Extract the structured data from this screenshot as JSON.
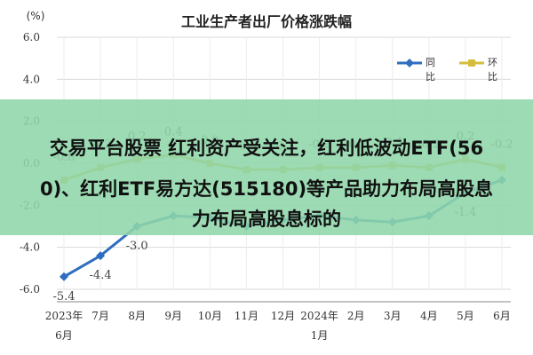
{
  "chart_data": {
    "type": "line",
    "title": "工业生产者出厂价格涨跌幅",
    "ylabel": "(%)",
    "ylim": [
      -6,
      6
    ],
    "yticks": [
      "6.0",
      "4.0",
      "2.0",
      "0.0",
      "-2.0",
      "-4.0",
      "-6.0"
    ],
    "ytick_values": [
      6,
      4,
      2,
      0,
      -2,
      -4,
      -6
    ],
    "grid": true,
    "legend": "top-right",
    "x": [
      {
        "label": "2023年",
        "sub": "6月"
      },
      {
        "label": "7月",
        "sub": ""
      },
      {
        "label": "8月",
        "sub": ""
      },
      {
        "label": "9月",
        "sub": ""
      },
      {
        "label": "10月",
        "sub": ""
      },
      {
        "label": "11月",
        "sub": ""
      },
      {
        "label": "12月",
        "sub": ""
      },
      {
        "label": "2024年",
        "sub": "1月"
      },
      {
        "label": "2月",
        "sub": ""
      },
      {
        "label": "3月",
        "sub": ""
      },
      {
        "label": "4月",
        "sub": ""
      },
      {
        "label": "5月",
        "sub": ""
      },
      {
        "label": "6月",
        "sub": ""
      }
    ],
    "series": [
      {
        "name": "同比",
        "color": "#2e6dbf",
        "values": [
          -5.4,
          -4.4,
          -3.0,
          -2.5,
          -2.6,
          -3.0,
          -2.7,
          -2.5,
          -2.7,
          -2.8,
          -2.5,
          -1.4,
          -0.8
        ],
        "labels": [
          "-5.4",
          "-4.4",
          "-3.0",
          "",
          "",
          "",
          "",
          "",
          "",
          "",
          "",
          "-1.4",
          ""
        ],
        "marker": "diamond"
      },
      {
        "name": "环比",
        "color": "#d4bd3c",
        "values": [
          -0.8,
          -0.2,
          0.2,
          0.4,
          0.0,
          -0.3,
          -0.3,
          -0.2,
          -0.2,
          -0.1,
          -0.2,
          0.2,
          -0.2
        ],
        "labels": [
          "-0.8",
          "-0.2",
          "0.2",
          "0.4",
          "0.0",
          "-0.3",
          "-0.3",
          "-0.2",
          "-0.2",
          "-0.1",
          "-0.2",
          "0.2",
          "-0.2"
        ],
        "marker": "square"
      }
    ]
  },
  "banner": {
    "line1": "交易平台股票 红利资产受关注，红利低波动ETF(56",
    "line2": "0)、红利ETF易方达(515180)等产品助力布局高股息",
    "line3": "力布局高股息标的"
  }
}
